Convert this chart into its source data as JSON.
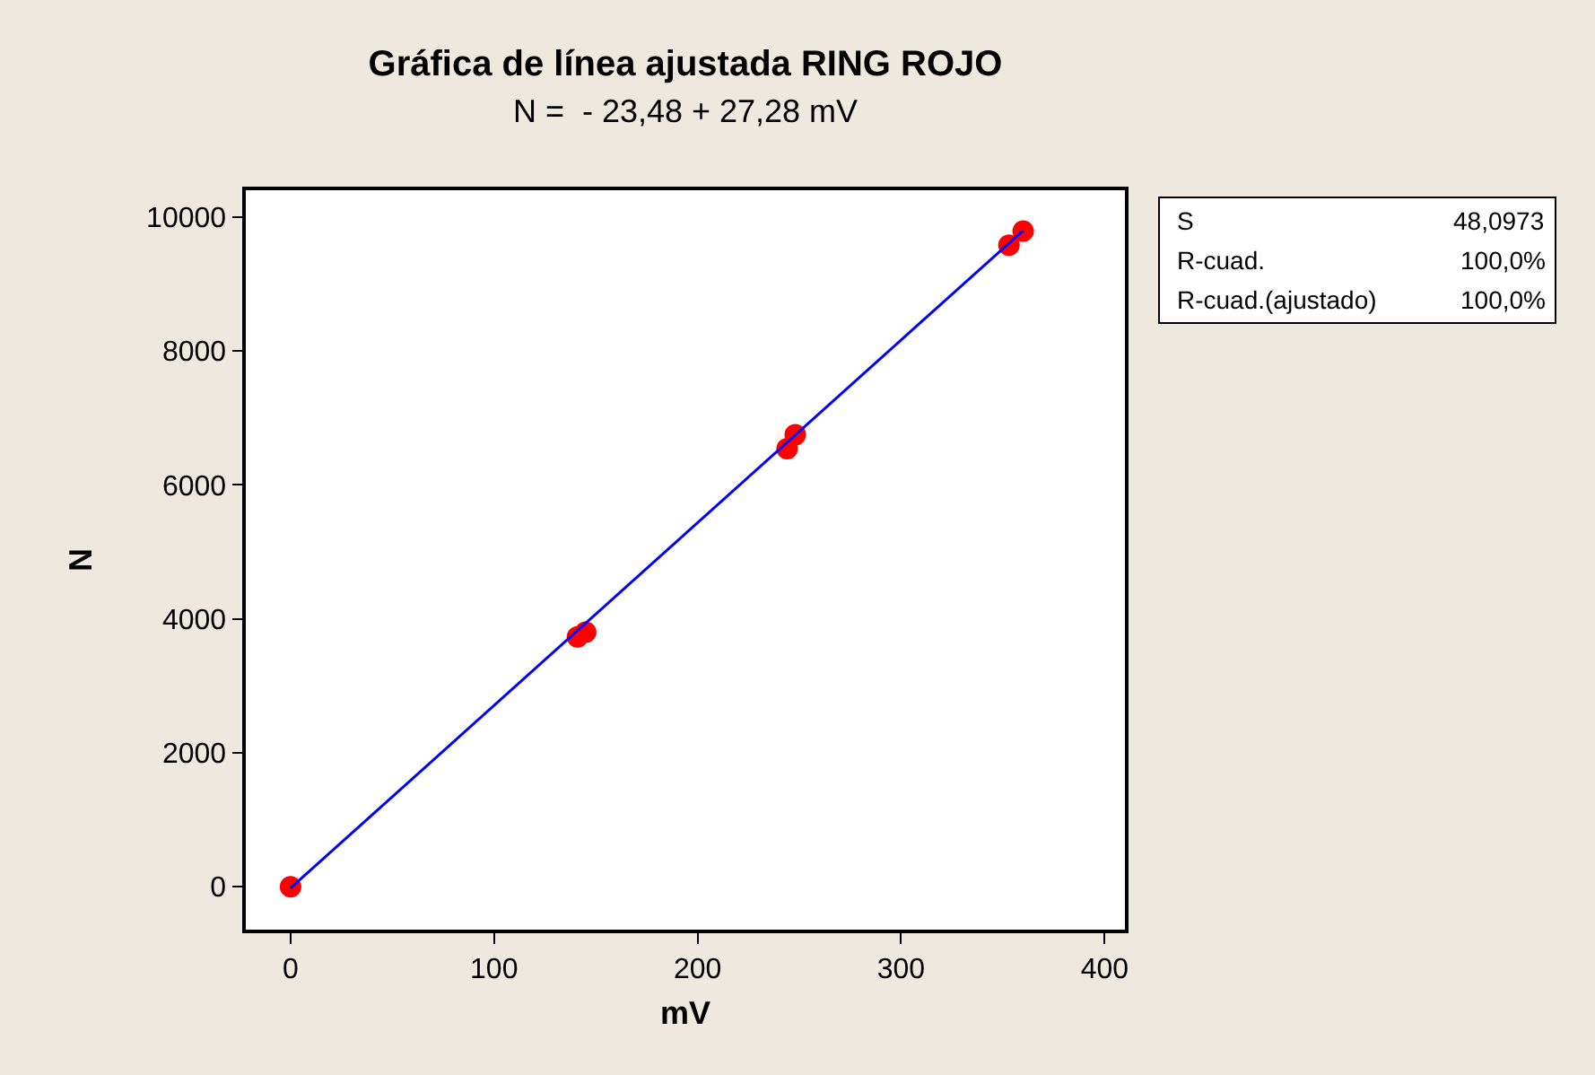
{
  "chart_data": {
    "type": "scatter",
    "title": "Gráfica de línea ajustada RING ROJO",
    "subtitle": "N =  - 23,48 + 27,28 mV",
    "xlabel": "mV",
    "ylabel": "N",
    "series": [
      {
        "color": "#ff0000",
        "marker": "circle",
        "x": [
          0,
          141,
          145,
          244,
          248,
          353,
          360
        ],
        "values": [
          0,
          3730,
          3800,
          6540,
          6750,
          9580,
          9790
        ]
      },
      {
        "type": "line",
        "color": "#0000ff",
        "marker": "none",
        "line_style": "solid",
        "x": [
          0,
          360
        ],
        "values": [
          -20,
          9800
        ]
      }
    ],
    "xlim": [
      -22,
      410
    ],
    "ylim": [
      -640,
      10400
    ],
    "xticks": [
      0,
      100,
      200,
      300,
      400
    ],
    "yticks": [
      0,
      2000,
      4000,
      6000,
      8000,
      10000
    ],
    "annotations": [
      "S",
      "48,0973",
      "R-cuad.",
      "100,0%",
      "R-cuad.(ajustado)",
      "100,0%"
    ]
  }
}
